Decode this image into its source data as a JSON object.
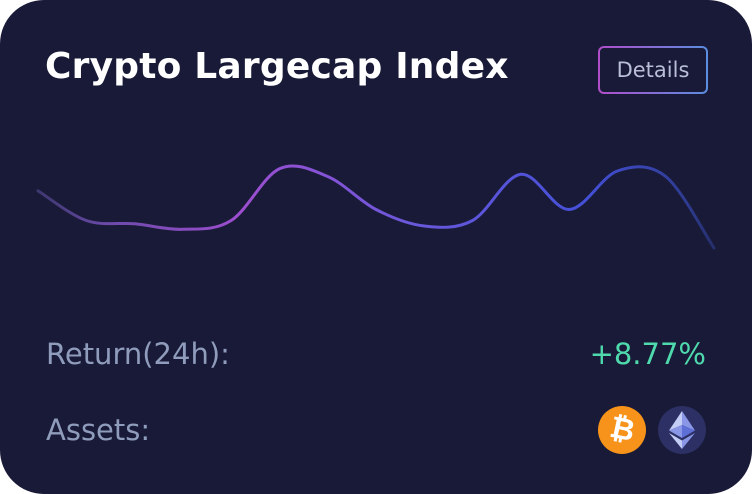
{
  "card": {
    "title": "Crypto Largecap Index",
    "details_label": "Details"
  },
  "chart_data": {
    "type": "line",
    "series": [
      {
        "values": [
          0.72,
          0.45,
          0.42,
          0.37,
          0.45,
          0.92,
          0.85,
          0.55,
          0.4,
          0.45,
          0.87,
          0.55,
          0.9,
          0.85,
          0.2
        ]
      }
    ]
  },
  "stats": {
    "return_label": "Return(24h):",
    "return_value": "+8.77%",
    "return_color": "#4fdaad",
    "assets_label": "Assets:"
  },
  "assets": [
    {
      "name": "bitcoin",
      "icon": "bitcoin-icon",
      "color": "#f7931a"
    },
    {
      "name": "ethereum",
      "icon": "ethereum-icon",
      "color": "#2c3064"
    }
  ]
}
